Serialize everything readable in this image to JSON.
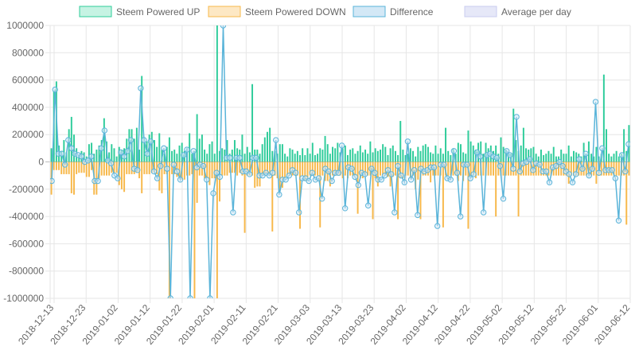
{
  "chart_data": {
    "type": "bar",
    "y_ticks": [
      "1000000",
      "800000",
      "600000",
      "400000",
      "200000",
      "0",
      "-200000",
      "-400000",
      "-600000",
      "-800000",
      "-1000000"
    ],
    "ylim": [
      -1000000,
      1000000
    ],
    "x_ticks": [
      "2018-12-13",
      "2018-12-23",
      "2019-01-02",
      "2019-01-12",
      "2019-01-22",
      "2019-02-01",
      "2019-02-11",
      "2019-02-21",
      "2019-03-03",
      "2019-03-13",
      "2019-03-23",
      "2019-04-02",
      "2019-04-12",
      "2019-04-22",
      "2019-05-02",
      "2019-05-12",
      "2019-05-22",
      "2019-06-01",
      "2019-06-12"
    ],
    "legend": [
      {
        "label": "Steem Powered UP",
        "fill": "#c6f3e3",
        "stroke": "#2ecc9a"
      },
      {
        "label": "Steem Powered DOWN",
        "fill": "#fde8c4",
        "stroke": "#f7b84a"
      },
      {
        "label": "Difference",
        "fill": "#d3e8f6",
        "stroke": "#5ab4d9"
      },
      {
        "label": "Average per day",
        "fill": "#e6e8f8",
        "stroke": "#c9ccef"
      }
    ],
    "series": [
      {
        "name": "Steem Powered UP",
        "color": "#2ecc9a",
        "values": [
          100000,
          520000,
          590000,
          120000,
          80000,
          160000,
          70000,
          240000,
          330000,
          200000,
          100000,
          50000,
          80000,
          70000,
          40000,
          130000,
          140000,
          60000,
          90000,
          120000,
          160000,
          320000,
          150000,
          70000,
          130000,
          100000,
          40000,
          110000,
          90000,
          100000,
          170000,
          240000,
          240000,
          170000,
          250000,
          90000,
          630000,
          180000,
          150000,
          200000,
          220000,
          160000,
          110000,
          210000,
          90000,
          60000,
          110000,
          180000,
          80000,
          90000,
          60000,
          120000,
          140000,
          80000,
          100000,
          210000,
          60000,
          80000,
          350000,
          170000,
          200000,
          90000,
          60000,
          130000,
          150000,
          60000,
          1000000,
          80000,
          100000,
          90000,
          160000,
          60000,
          90000,
          160000,
          100000,
          90000,
          200000,
          60000,
          110000,
          70000,
          570000,
          90000,
          90000,
          60000,
          130000,
          180000,
          220000,
          250000,
          80000,
          80000,
          60000,
          130000,
          130000,
          60000,
          40000,
          100000,
          90000,
          60000,
          80000,
          50000,
          100000,
          50000,
          100000,
          60000,
          140000,
          50000,
          60000,
          100000,
          90000,
          190000,
          130000,
          60000,
          110000,
          100000,
          140000,
          70000,
          100000,
          120000,
          50000,
          90000,
          100000,
          60000,
          80000,
          120000,
          70000,
          90000,
          60000,
          150000,
          70000,
          100000,
          80000,
          90000,
          130000,
          110000,
          50000,
          100000,
          120000,
          80000,
          50000,
          300000,
          90000,
          50000,
          60000,
          100000,
          80000,
          40000,
          110000,
          80000,
          120000,
          130000,
          110000,
          70000,
          60000,
          120000,
          60000,
          100000,
          60000,
          250000,
          80000,
          50000,
          100000,
          60000,
          140000,
          130000,
          70000,
          60000,
          230000,
          150000,
          120000,
          90000,
          140000,
          150000,
          60000,
          140000,
          100000,
          120000,
          80000,
          120000,
          60000,
          180000,
          110000,
          90000,
          60000,
          60000,
          390000,
          160000,
          80000,
          120000,
          250000,
          100000,
          90000,
          100000,
          110000,
          60000,
          40000,
          90000,
          50000,
          60000,
          80000,
          60000,
          110000,
          40000,
          40000,
          90000,
          60000,
          60000,
          120000,
          40000,
          80000,
          70000,
          60000,
          40000,
          140000,
          60000,
          150000,
          60000,
          40000,
          110000,
          40000,
          60000,
          640000,
          240000,
          60000,
          40000,
          60000,
          80000,
          40000,
          60000,
          240000,
          80000,
          270000
        ]
      },
      {
        "name": "Steem Powered DOWN",
        "color": "#f7b84a",
        "values": [
          -240000,
          -60000,
          -60000,
          -60000,
          -90000,
          -90000,
          -90000,
          -90000,
          -230000,
          -240000,
          -90000,
          -80000,
          -80000,
          -80000,
          -110000,
          -110000,
          -60000,
          -240000,
          -240000,
          -120000,
          -100000,
          -100000,
          -100000,
          -100000,
          -80000,
          -80000,
          -80000,
          -170000,
          -200000,
          -220000,
          -90000,
          -90000,
          -90000,
          -90000,
          -80000,
          -120000,
          -230000,
          -90000,
          -90000,
          -90000,
          -80000,
          -80000,
          -90000,
          -210000,
          -230000,
          -90000,
          -90000,
          -1000000,
          -90000,
          -90000,
          -110000,
          -110000,
          -130000,
          -130000,
          -100000,
          -100000,
          -90000,
          -1000000,
          -300000,
          -100000,
          -100000,
          -120000,
          -120000,
          -170000,
          -120000,
          -120000,
          -1000000,
          -290000,
          -100000,
          -100000,
          -100000,
          -80000,
          -80000,
          -80000,
          -100000,
          -80000,
          -100000,
          -520000,
          -100000,
          -100000,
          -100000,
          -190000,
          -180000,
          -180000,
          -100000,
          -100000,
          -100000,
          -100000,
          -510000,
          -100000,
          -120000,
          -210000,
          -190000,
          -120000,
          -100000,
          -100000,
          -100000,
          -100000,
          -100000,
          -490000,
          -100000,
          -140000,
          -140000,
          -100000,
          -100000,
          -100000,
          -100000,
          -480000,
          -100000,
          -140000,
          -140000,
          -180000,
          -100000,
          -100000,
          -100000,
          -100000,
          -120000,
          -100000,
          -120000,
          -100000,
          -100000,
          -100000,
          -380000,
          -120000,
          -120000,
          -100000,
          -100000,
          -100000,
          -420000,
          -120000,
          -180000,
          -100000,
          -100000,
          -100000,
          -110000,
          -180000,
          -110000,
          -100000,
          -420000,
          -120000,
          -120000,
          -100000,
          -100000,
          -120000,
          -100000,
          -200000,
          -130000,
          -420000,
          -100000,
          -100000,
          -100000,
          -150000,
          -100000,
          -100000,
          -100000,
          -100000,
          -480000,
          -100000,
          -100000,
          -100000,
          -100000,
          -100000,
          -140000,
          -100000,
          -140000,
          -100000,
          -490000,
          -100000,
          -100000,
          -120000,
          -100000,
          -100000,
          -100000,
          -100000,
          -100000,
          -100000,
          -100000,
          -400000,
          -100000,
          -100000,
          -100000,
          -100000,
          -100000,
          -100000,
          -100000,
          -100000,
          -400000,
          -100000,
          -100000,
          -100000,
          -100000,
          -100000,
          -100000,
          -100000,
          -100000,
          -100000,
          -100000,
          -100000,
          -100000,
          -100000,
          -100000,
          -100000,
          -100000,
          -100000,
          -100000,
          -100000,
          -160000,
          -100000,
          -100000,
          -100000,
          -100000,
          -100000,
          -100000,
          -100000,
          -100000,
          -100000,
          -100000,
          -160000,
          -100000,
          -100000,
          -100000,
          -100000,
          -100000,
          -100000,
          -100000,
          -100000,
          -100000,
          -100000,
          -100000,
          -460000,
          -100000,
          -100000,
          -150000
        ]
      }
    ],
    "line": {
      "name": "Difference",
      "color": "#5ab4d9",
      "values": [
        -140000,
        530000,
        60000,
        60000,
        -20000,
        160000,
        100000,
        60000,
        50000,
        40000,
        0,
        10000,
        40000,
        -140000,
        -140000,
        100000,
        230000,
        10000,
        -10000,
        -100000,
        -120000,
        70000,
        40000,
        80000,
        160000,
        -50000,
        -60000,
        540000,
        160000,
        60000,
        150000,
        -70000,
        -120000,
        -30000,
        100000,
        -50000,
        -1000000,
        -20000,
        -70000,
        -130000,
        50000,
        90000,
        -1000000,
        80000,
        -40000,
        -20000,
        -30000,
        -130000,
        -1000000,
        -230000,
        -80000,
        -110000,
        1000000,
        30000,
        30000,
        -370000,
        30000,
        30000,
        -70000,
        -70000,
        -90000,
        30000,
        30000,
        -100000,
        -100000,
        -80000,
        -100000,
        -80000,
        160000,
        -240000,
        -130000,
        -130000,
        -100000,
        -60000,
        -80000,
        -370000,
        -120000,
        -120000,
        -140000,
        -80000,
        -130000,
        -120000,
        -270000,
        -50000,
        -70000,
        -140000,
        -80000,
        -80000,
        120000,
        -340000,
        -40000,
        -50000,
        -110000,
        -170000,
        -80000,
        -90000,
        -320000,
        -50000,
        -80000,
        -130000,
        -130000,
        -100000,
        -60000,
        -90000,
        -370000,
        -30000,
        -100000,
        -150000,
        150000,
        -130000,
        -60000,
        -390000,
        -50000,
        -70000,
        -60000,
        -40000,
        -40000,
        -470000,
        -20000,
        -20000,
        -120000,
        -130000,
        80000,
        -80000,
        -400000,
        -20000,
        -20000,
        -120000,
        -90000,
        70000,
        40000,
        -370000,
        50000,
        60000,
        40000,
        30000,
        -30000,
        -270000,
        80000,
        50000,
        -50000,
        330000,
        -70000,
        -10000,
        0,
        20000,
        -60000,
        -10000,
        -20000,
        -70000,
        -70000,
        -150000,
        -40000,
        -30000,
        0,
        -30000,
        -70000,
        -90000,
        -150000,
        -90000,
        20000,
        -50000,
        60000,
        -100000,
        -50000,
        440000,
        -80000,
        100000,
        -60000,
        -60000,
        -60000,
        -120000,
        -430000,
        50000,
        -70000,
        130000
      ]
    }
  }
}
